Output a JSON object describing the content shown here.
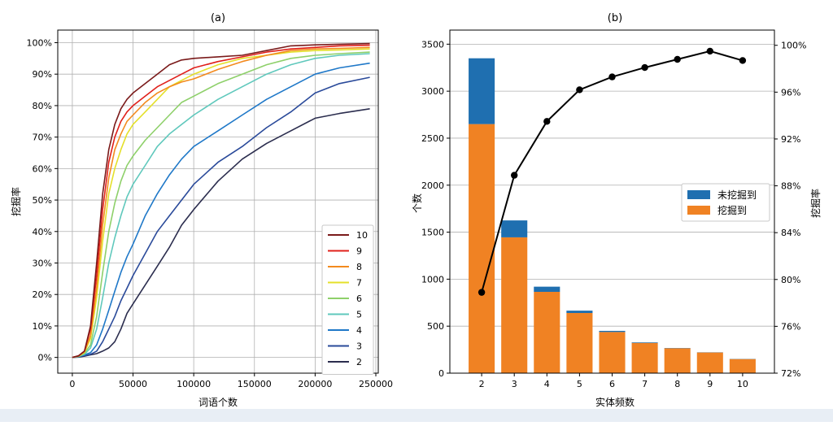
{
  "chart_data": [
    {
      "type": "line",
      "title": "(a)",
      "xlabel": "词语个数",
      "ylabel": "挖掘率",
      "xlim": [
        -12000,
        252000
      ],
      "ylim": [
        -0.05,
        1.04
      ],
      "xticks": [
        0,
        50000,
        100000,
        150000,
        200000,
        250000
      ],
      "xtick_labels": [
        "0",
        "50000",
        "100000",
        "150000",
        "200000",
        "250000"
      ],
      "yticks": [
        0,
        0.1,
        0.2,
        0.3,
        0.4,
        0.5,
        0.6,
        0.7,
        0.8,
        0.9,
        1.0
      ],
      "ytick_labels": [
        "0%",
        "10%",
        "20%",
        "30%",
        "40%",
        "50%",
        "60%",
        "70%",
        "80%",
        "90%",
        "100%"
      ],
      "grid": true,
      "legend": "bottom-right",
      "x": [
        0,
        5000,
        10000,
        15000,
        20000,
        25000,
        30000,
        35000,
        40000,
        45000,
        50000,
        60000,
        70000,
        80000,
        90000,
        100000,
        120000,
        140000,
        160000,
        180000,
        200000,
        220000,
        245000
      ],
      "series": [
        {
          "name": "10",
          "color": "#7a1a1a",
          "values": [
            0,
            0.005,
            0.02,
            0.1,
            0.3,
            0.52,
            0.66,
            0.74,
            0.79,
            0.82,
            0.84,
            0.87,
            0.9,
            0.93,
            0.945,
            0.95,
            0.955,
            0.96,
            0.975,
            0.99,
            0.993,
            0.995,
            0.997
          ]
        },
        {
          "name": "9",
          "color": "#e0201b",
          "values": [
            0,
            0.005,
            0.02,
            0.09,
            0.26,
            0.47,
            0.62,
            0.7,
            0.75,
            0.78,
            0.8,
            0.83,
            0.86,
            0.88,
            0.9,
            0.92,
            0.94,
            0.955,
            0.97,
            0.98,
            0.985,
            0.99,
            0.992
          ]
        },
        {
          "name": "8",
          "color": "#f38a1e",
          "values": [
            0,
            0.004,
            0.018,
            0.07,
            0.22,
            0.42,
            0.57,
            0.66,
            0.71,
            0.75,
            0.77,
            0.81,
            0.84,
            0.86,
            0.875,
            0.885,
            0.915,
            0.94,
            0.96,
            0.975,
            0.98,
            0.982,
            0.985
          ]
        },
        {
          "name": "7",
          "color": "#e4e02a",
          "values": [
            0,
            0.004,
            0.016,
            0.06,
            0.19,
            0.37,
            0.52,
            0.6,
            0.66,
            0.71,
            0.74,
            0.78,
            0.82,
            0.86,
            0.88,
            0.9,
            0.93,
            0.95,
            0.96,
            0.97,
            0.975,
            0.977,
            0.98
          ]
        },
        {
          "name": "6",
          "color": "#8ed06a",
          "values": [
            0,
            0.003,
            0.013,
            0.04,
            0.13,
            0.27,
            0.4,
            0.49,
            0.56,
            0.61,
            0.64,
            0.69,
            0.73,
            0.77,
            0.81,
            0.83,
            0.87,
            0.9,
            0.93,
            0.95,
            0.96,
            0.965,
            0.97
          ]
        },
        {
          "name": "5",
          "color": "#5fc8bc",
          "values": [
            0,
            0.003,
            0.01,
            0.03,
            0.09,
            0.19,
            0.3,
            0.38,
            0.45,
            0.51,
            0.55,
            0.61,
            0.67,
            0.71,
            0.74,
            0.77,
            0.82,
            0.86,
            0.9,
            0.93,
            0.95,
            0.96,
            0.965
          ]
        },
        {
          "name": "4",
          "color": "#1f78c8",
          "values": [
            0,
            0.002,
            0.008,
            0.015,
            0.04,
            0.09,
            0.15,
            0.21,
            0.27,
            0.32,
            0.36,
            0.45,
            0.52,
            0.58,
            0.63,
            0.67,
            0.72,
            0.77,
            0.82,
            0.86,
            0.9,
            0.92,
            0.935
          ]
        },
        {
          "name": "3",
          "color": "#2a4a9a",
          "values": [
            0,
            0.002,
            0.006,
            0.01,
            0.02,
            0.05,
            0.09,
            0.13,
            0.18,
            0.22,
            0.26,
            0.33,
            0.4,
            0.45,
            0.5,
            0.55,
            0.62,
            0.67,
            0.73,
            0.78,
            0.84,
            0.87,
            0.89
          ]
        },
        {
          "name": "2",
          "color": "#2b2d4e",
          "values": [
            0,
            0.001,
            0.004,
            0.008,
            0.012,
            0.02,
            0.03,
            0.05,
            0.09,
            0.14,
            0.17,
            0.23,
            0.29,
            0.35,
            0.42,
            0.47,
            0.56,
            0.63,
            0.68,
            0.72,
            0.76,
            0.775,
            0.79
          ]
        }
      ]
    },
    {
      "type": "bar",
      "title": "(b)",
      "xlabel": "实体频数",
      "ylabel": "个数",
      "y2label": "挖掘率",
      "categories": [
        "2",
        "3",
        "4",
        "5",
        "6",
        "7",
        "8",
        "9",
        "10"
      ],
      "ylim": [
        0,
        3650
      ],
      "yticks": [
        0,
        500,
        1000,
        1500,
        2000,
        2500,
        3000,
        3500
      ],
      "ytick_labels": [
        "0",
        "500",
        "1000",
        "1500",
        "2000",
        "2500",
        "3000",
        "3500"
      ],
      "y2lim": [
        0.72,
        1.013
      ],
      "y2ticks": [
        0.72,
        0.76,
        0.8,
        0.84,
        0.88,
        0.92,
        0.96,
        1.0
      ],
      "y2tick_labels": [
        "72%",
        "76%",
        "80%",
        "84%",
        "88%",
        "92%",
        "96%",
        "100%"
      ],
      "grid": true,
      "legend": "center-right",
      "series": [
        {
          "name": "挖掘到",
          "color": "#f08223",
          "values": [
            2650,
            1445,
            865,
            640,
            438,
            322,
            265,
            220,
            150
          ]
        },
        {
          "name": "未挖掘到",
          "color": "#1f6fb0",
          "values": [
            700,
            180,
            55,
            25,
            12,
            6,
            3,
            2,
            2
          ]
        }
      ],
      "line": {
        "color": "#000000",
        "values": [
          0.789,
          0.889,
          0.935,
          0.962,
          0.973,
          0.981,
          0.988,
          0.995,
          0.987
        ]
      }
    }
  ]
}
